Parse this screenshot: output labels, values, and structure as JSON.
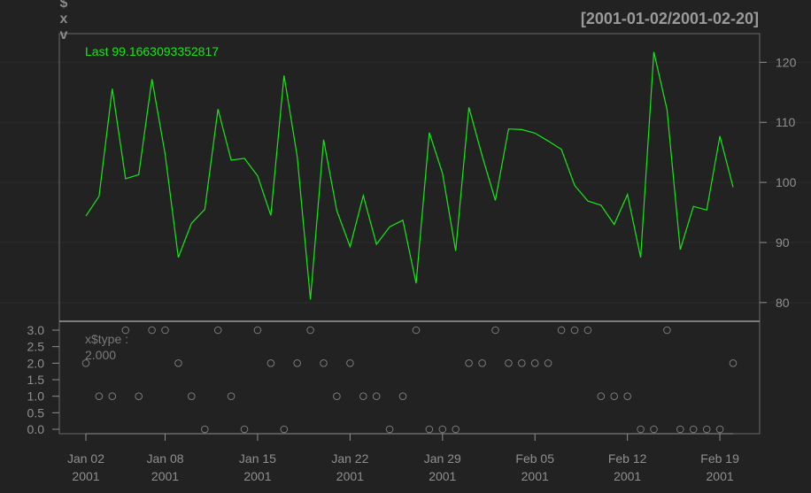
{
  "chart_data": {
    "type": "line",
    "range_label": "[2001-01-02/2001-02-20]",
    "ylabel_chars": [
      "$",
      "x",
      "v"
    ],
    "last_label": "Last 99.1663093352817",
    "colors": {
      "background": "#222222",
      "line": "#19e619",
      "axis": "#8f8f8f",
      "grid": "#2e2e2e",
      "points": "#7a7a7a"
    },
    "dates": [
      "2001-01-02",
      "2001-01-03",
      "2001-01-04",
      "2001-01-05",
      "2001-01-06",
      "2001-01-07",
      "2001-01-08",
      "2001-01-09",
      "2001-01-10",
      "2001-01-11",
      "2001-01-12",
      "2001-01-13",
      "2001-01-14",
      "2001-01-15",
      "2001-01-16",
      "2001-01-17",
      "2001-01-18",
      "2001-01-19",
      "2001-01-20",
      "2001-01-21",
      "2001-01-22",
      "2001-01-23",
      "2001-01-24",
      "2001-01-25",
      "2001-01-26",
      "2001-01-27",
      "2001-01-28",
      "2001-01-29",
      "2001-01-30",
      "2001-01-31",
      "2001-02-01",
      "2001-02-02",
      "2001-02-03",
      "2001-02-04",
      "2001-02-05",
      "2001-02-06",
      "2001-02-07",
      "2001-02-08",
      "2001-02-09",
      "2001-02-10",
      "2001-02-11",
      "2001-02-12",
      "2001-02-13",
      "2001-02-14",
      "2001-02-15",
      "2001-02-16",
      "2001-02-17",
      "2001-02-18",
      "2001-02-19",
      "2001-02-20"
    ],
    "main_panel": {
      "values": [
        94.4,
        97.7,
        115.6,
        100.6,
        101.3,
        117.2,
        104.7,
        87.5,
        93.2,
        95.5,
        112.2,
        103.7,
        104.0,
        101.1,
        94.5,
        117.8,
        104.3,
        80.5,
        107.1,
        95.3,
        89.3,
        97.8,
        89.7,
        92.6,
        93.7,
        83.2,
        108.3,
        101.5,
        88.6,
        112.5,
        104.4,
        97.0,
        108.9,
        108.8,
        108.2,
        106.9,
        105.5,
        99.5,
        96.9,
        96.2,
        93.0,
        98.0,
        87.5,
        121.7,
        112.1,
        88.8,
        96.0,
        95.4,
        107.7,
        99.2
      ],
      "ylim": [
        78.5,
        123
      ],
      "yticks": [
        80,
        90,
        100,
        110,
        120
      ],
      "ytick_labels": [
        "80",
        "90",
        "100",
        "110",
        "120"
      ]
    },
    "sub_panel": {
      "type": "scatter",
      "label_name": "x$type :",
      "label_value": "2.000",
      "values": [
        2,
        1,
        1,
        3,
        1,
        3,
        3,
        2,
        1,
        0,
        3,
        1,
        0,
        3,
        2,
        0,
        2,
        3,
        2,
        1,
        2,
        1,
        1,
        0,
        1,
        3,
        0,
        0,
        0,
        2,
        2,
        3,
        2,
        2,
        2,
        2,
        3,
        3,
        3,
        1,
        1,
        1,
        0,
        0,
        3,
        0,
        0,
        0,
        0,
        2
      ],
      "ylim": [
        -0.15,
        3.25
      ],
      "yticks": [
        0,
        0.5,
        1,
        1.5,
        2,
        2.5,
        3
      ],
      "ytick_labels": [
        "0.0",
        "0.5",
        "1.0",
        "1.5",
        "2.0",
        "2.5",
        "3.0"
      ]
    },
    "xticks": [
      {
        "date": "2001-01-02",
        "label1": "Jan 02",
        "label2": "2001"
      },
      {
        "date": "2001-01-08",
        "label1": "Jan 08",
        "label2": "2001"
      },
      {
        "date": "2001-01-15",
        "label1": "Jan 15",
        "label2": "2001"
      },
      {
        "date": "2001-01-22",
        "label1": "Jan 22",
        "label2": "2001"
      },
      {
        "date": "2001-01-29",
        "label1": "Jan 29",
        "label2": "2001"
      },
      {
        "date": "2001-02-05",
        "label1": "Feb 05",
        "label2": "2001"
      },
      {
        "date": "2001-02-12",
        "label1": "Feb 12",
        "label2": "2001"
      },
      {
        "date": "2001-02-19",
        "label1": "Feb 19",
        "label2": "2001"
      }
    ]
  }
}
